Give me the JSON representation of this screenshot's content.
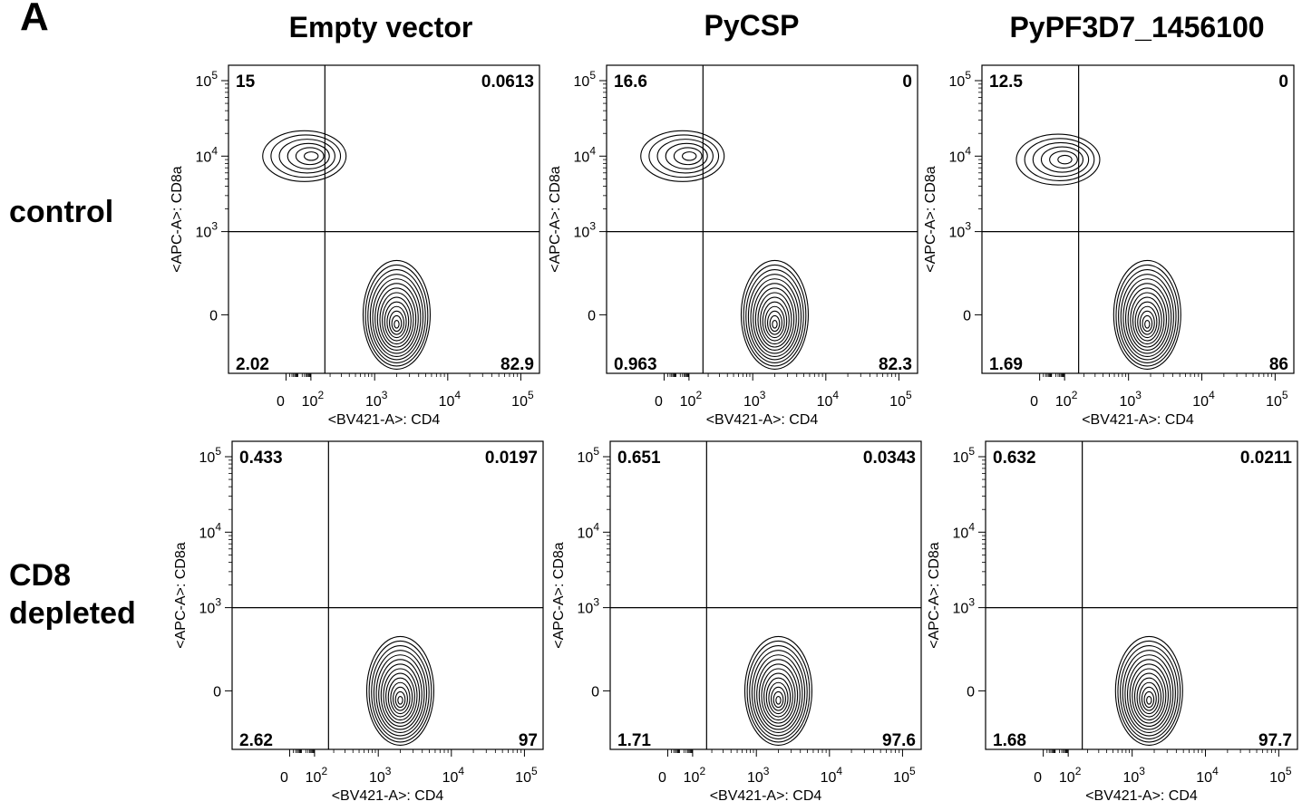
{
  "figure": {
    "panel_letter": "A",
    "column_titles": [
      "Empty vector",
      "PyCSP",
      "PyPF3D7_1456100"
    ],
    "row_labels": [
      "control",
      "CD8\ndepleted"
    ]
  },
  "chart_data": [
    {
      "type": "contour",
      "row": "control",
      "column": "Empty vector",
      "xlabel": "<BV421-A>: CD4",
      "ylabel": "<APC-A>: CD8a",
      "x_ticks": [
        "0",
        "10^2",
        "10^3",
        "10^4",
        "10^5"
      ],
      "y_ticks": [
        "0",
        "10^3",
        "10^4",
        "10^5"
      ],
      "quadrants": {
        "upper_left": "15",
        "upper_right": "0.0613",
        "lower_left": "2.02",
        "lower_right": "82.9"
      },
      "populations": [
        {
          "name": "CD8+",
          "x": 30,
          "y": 10000
        },
        {
          "name": "CD4+",
          "x": 2000,
          "y": 0
        }
      ]
    },
    {
      "type": "contour",
      "row": "control",
      "column": "PyCSP",
      "xlabel": "<BV421-A>: CD4",
      "ylabel": "<APC-A>: CD8a",
      "x_ticks": [
        "0",
        "10^2",
        "10^3",
        "10^4",
        "10^5"
      ],
      "y_ticks": [
        "0",
        "10^3",
        "10^4",
        "10^5"
      ],
      "quadrants": {
        "upper_left": "16.6",
        "upper_right": "0",
        "lower_left": "0.963",
        "lower_right": "82.3"
      },
      "populations": [
        {
          "name": "CD8+",
          "x": 30,
          "y": 10000
        },
        {
          "name": "CD4+",
          "x": 2000,
          "y": 0
        }
      ]
    },
    {
      "type": "contour",
      "row": "control",
      "column": "PyPF3D7_1456100",
      "xlabel": "<BV421-A>: CD4",
      "ylabel": "<APC-A>: CD8a",
      "x_ticks": [
        "0",
        "10^2",
        "10^3",
        "10^4",
        "10^5"
      ],
      "y_ticks": [
        "0",
        "10^3",
        "10^4",
        "10^5"
      ],
      "quadrants": {
        "upper_left": "12.5",
        "upper_right": "0",
        "lower_left": "1.69",
        "lower_right": "86"
      },
      "populations": [
        {
          "name": "CD8+",
          "x": 30,
          "y": 9000
        },
        {
          "name": "CD4+",
          "x": 1800,
          "y": 0
        }
      ]
    },
    {
      "type": "contour",
      "row": "CD8 depleted",
      "column": "Empty vector",
      "xlabel": "<BV421-A>: CD4",
      "ylabel": "<APC-A>: CD8a",
      "x_ticks": [
        "0",
        "10^2",
        "10^3",
        "10^4",
        "10^5"
      ],
      "y_ticks": [
        "0",
        "10^3",
        "10^4",
        "10^5"
      ],
      "quadrants": {
        "upper_left": "0.433",
        "upper_right": "0.0197",
        "lower_left": "2.62",
        "lower_right": "97"
      },
      "populations": [
        {
          "name": "CD4+",
          "x": 2000,
          "y": 0
        }
      ]
    },
    {
      "type": "contour",
      "row": "CD8 depleted",
      "column": "PyCSP",
      "xlabel": "<BV421-A>: CD4",
      "ylabel": "<APC-A>: CD8a",
      "x_ticks": [
        "0",
        "10^2",
        "10^3",
        "10^4",
        "10^5"
      ],
      "y_ticks": [
        "0",
        "10^3",
        "10^4",
        "10^5"
      ],
      "quadrants": {
        "upper_left": "0.651",
        "upper_right": "0.0343",
        "lower_left": "1.71",
        "lower_right": "97.6"
      },
      "populations": [
        {
          "name": "CD4+",
          "x": 2000,
          "y": 0
        }
      ]
    },
    {
      "type": "contour",
      "row": "CD8 depleted",
      "column": "PyPF3D7_1456100",
      "xlabel": "<BV421-A>: CD4",
      "ylabel": "<APC-A>: CD8a",
      "x_ticks": [
        "0",
        "10^2",
        "10^3",
        "10^4",
        "10^5"
      ],
      "y_ticks": [
        "0",
        "10^3",
        "10^4",
        "10^5"
      ],
      "quadrants": {
        "upper_left": "0.632",
        "upper_right": "0.0211",
        "lower_left": "1.68",
        "lower_right": "97.7"
      },
      "populations": [
        {
          "name": "CD4+",
          "x": 1700,
          "y": 0
        }
      ]
    }
  ]
}
